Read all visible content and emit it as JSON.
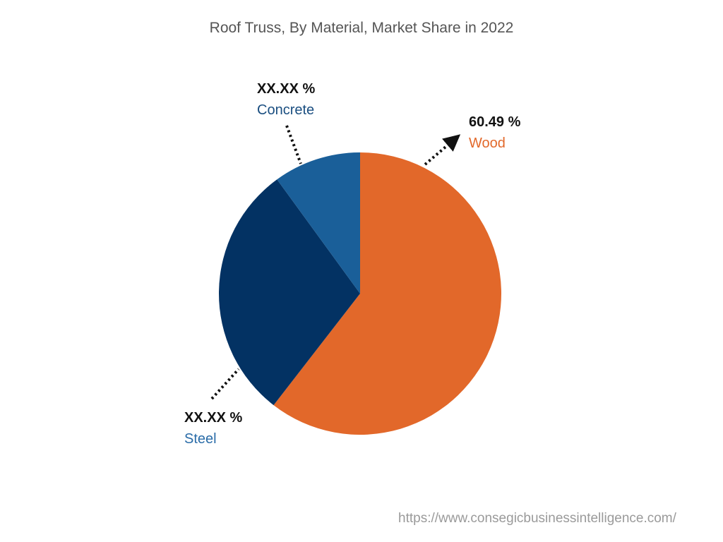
{
  "title": "Roof Truss, By Material, Market Share in 2022",
  "url": "https://www.consegicbusinessintelligence.com/",
  "labels": {
    "wood": {
      "pct": "60.49 %",
      "name": "Wood",
      "color": "#E2682A"
    },
    "concrete": {
      "pct": "XX.XX %",
      "name": "Concrete",
      "color": "#1A5F99"
    },
    "steel": {
      "pct": "XX.XX %",
      "name": "Steel",
      "color": "#1A5F99"
    }
  },
  "chart_data": {
    "type": "pie",
    "title": "Roof Truss, By Material, Market Share in 2022",
    "categories": [
      "Wood",
      "Steel",
      "Concrete"
    ],
    "values": [
      60.49,
      29.5,
      10.01
    ],
    "value_labels": [
      "60.49 %",
      "XX.XX %",
      "XX.XX %"
    ],
    "colors": [
      "#E2682A",
      "#033263",
      "#1A5F99"
    ],
    "start_angle": "12 o'clock, clockwise",
    "legend": "none (callout labels)"
  }
}
